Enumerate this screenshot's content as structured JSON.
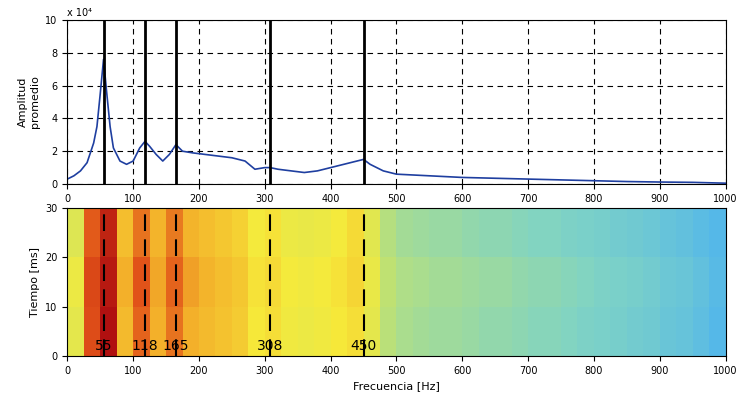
{
  "chart_data": [
    {
      "type": "line",
      "ylabel": "Amplitud\npromedio",
      "annotations": [
        "x 10⁴"
      ],
      "x": [
        0,
        10,
        20,
        30,
        40,
        45,
        50,
        55,
        60,
        65,
        70,
        80,
        90,
        100,
        110,
        118,
        125,
        135,
        145,
        155,
        165,
        175,
        190,
        210,
        230,
        250,
        270,
        285,
        300,
        308,
        320,
        340,
        360,
        380,
        400,
        420,
        440,
        450,
        460,
        480,
        500,
        550,
        600,
        650,
        700,
        750,
        800,
        850,
        900,
        950,
        1000
      ],
      "values": [
        0.3,
        0.5,
        0.8,
        1.3,
        2.5,
        3.5,
        5.5,
        7.6,
        5.5,
        3.5,
        2.2,
        1.4,
        1.2,
        1.4,
        2.2,
        2.6,
        2.3,
        1.8,
        1.4,
        1.8,
        2.4,
        2.0,
        1.9,
        1.8,
        1.7,
        1.6,
        1.4,
        0.9,
        1.0,
        1.0,
        0.9,
        0.8,
        0.7,
        0.8,
        1.0,
        1.2,
        1.4,
        1.5,
        1.2,
        0.8,
        0.6,
        0.5,
        0.4,
        0.35,
        0.3,
        0.25,
        0.2,
        0.15,
        0.12,
        0.1,
        0.05
      ],
      "color": "#1f3fa0",
      "xlim": [
        0,
        1000
      ],
      "ylim": [
        0,
        10
      ],
      "xticks": [
        0,
        100,
        200,
        300,
        400,
        500,
        600,
        700,
        800,
        900,
        1000
      ],
      "yticks": [
        0,
        2,
        4,
        6,
        8,
        10
      ],
      "grid": true,
      "markers": [
        55,
        118,
        165,
        308,
        450
      ]
    },
    {
      "type": "heatmap",
      "xlabel": "Frecuencia [Hz]",
      "ylabel": "Tiempo [ms]",
      "x_edges": [
        0,
        25,
        50,
        75,
        100,
        125,
        150,
        175,
        200,
        225,
        250,
        275,
        300,
        325,
        350,
        375,
        400,
        425,
        450,
        475,
        500,
        525,
        550,
        575,
        600,
        625,
        650,
        675,
        700,
        725,
        750,
        775,
        800,
        825,
        850,
        875,
        900,
        925,
        950,
        975,
        1000
      ],
      "y_edges": [
        0,
        10,
        20,
        30
      ],
      "cells": [
        [
          0.55,
          0.85,
          0.97,
          0.7,
          0.82,
          0.72,
          0.8,
          0.72,
          0.7,
          0.68,
          0.66,
          0.6,
          0.62,
          0.58,
          0.57,
          0.58,
          0.6,
          0.62,
          0.55,
          0.45,
          0.42,
          0.41,
          0.4,
          0.4,
          0.39,
          0.38,
          0.38,
          0.37,
          0.36,
          0.36,
          0.35,
          0.34,
          0.33,
          0.32,
          0.31,
          0.3,
          0.28,
          0.27,
          0.25,
          0.22
        ],
        [
          0.57,
          0.86,
          0.95,
          0.72,
          0.84,
          0.73,
          0.82,
          0.74,
          0.71,
          0.69,
          0.67,
          0.61,
          0.63,
          0.59,
          0.58,
          0.59,
          0.61,
          0.64,
          0.56,
          0.46,
          0.43,
          0.42,
          0.41,
          0.41,
          0.4,
          0.39,
          0.39,
          0.38,
          0.37,
          0.37,
          0.36,
          0.35,
          0.34,
          0.33,
          0.32,
          0.31,
          0.29,
          0.28,
          0.26,
          0.23
        ],
        [
          0.53,
          0.83,
          0.93,
          0.69,
          0.8,
          0.71,
          0.79,
          0.71,
          0.69,
          0.67,
          0.65,
          0.59,
          0.61,
          0.57,
          0.56,
          0.57,
          0.59,
          0.63,
          0.54,
          0.44,
          0.41,
          0.4,
          0.39,
          0.39,
          0.38,
          0.37,
          0.37,
          0.36,
          0.35,
          0.35,
          0.34,
          0.33,
          0.32,
          0.31,
          0.3,
          0.29,
          0.27,
          0.26,
          0.24,
          0.22
        ]
      ],
      "xlim": [
        0,
        1000
      ],
      "ylim": [
        0,
        30
      ],
      "xticks": [
        0,
        100,
        200,
        300,
        400,
        500,
        600,
        700,
        800,
        900,
        1000
      ],
      "yticks": [
        0,
        10,
        20,
        30
      ],
      "markers": [
        55,
        118,
        165,
        308,
        450
      ]
    }
  ]
}
